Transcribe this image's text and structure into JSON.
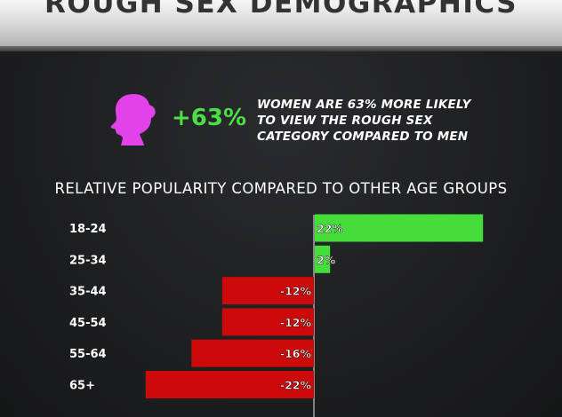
{
  "header": {
    "title": "ROUGH SEX DEMOGRAPHICS"
  },
  "highlight": {
    "icon": "woman-silhouette-icon",
    "stat": "+63%",
    "description_lines": [
      "WOMEN ARE 63% MORE LIKELY",
      "TO VIEW THE ROUGH SEX",
      "CATEGORY COMPARED TO MEN"
    ]
  },
  "colors": {
    "accent_green": "#4ddf45",
    "bar_positive": "#44dd3a",
    "bar_negative": "#cc0a0a",
    "icon_pink": "#e243e8",
    "background": "#1b1c1e"
  },
  "chart_data": {
    "type": "bar",
    "orientation": "horizontal",
    "title": "RELATIVE POPULARITY COMPARED TO OTHER AGE GROUPS",
    "categories": [
      "18-24",
      "25-34",
      "35-44",
      "45-54",
      "55-64",
      "65+"
    ],
    "values": [
      22,
      2,
      -12,
      -12,
      -16,
      -22
    ],
    "labels": [
      "22%",
      "2%",
      "-12%",
      "-12%",
      "-16%",
      "-22%"
    ],
    "xlim": [
      -22,
      22
    ],
    "grid": false
  }
}
